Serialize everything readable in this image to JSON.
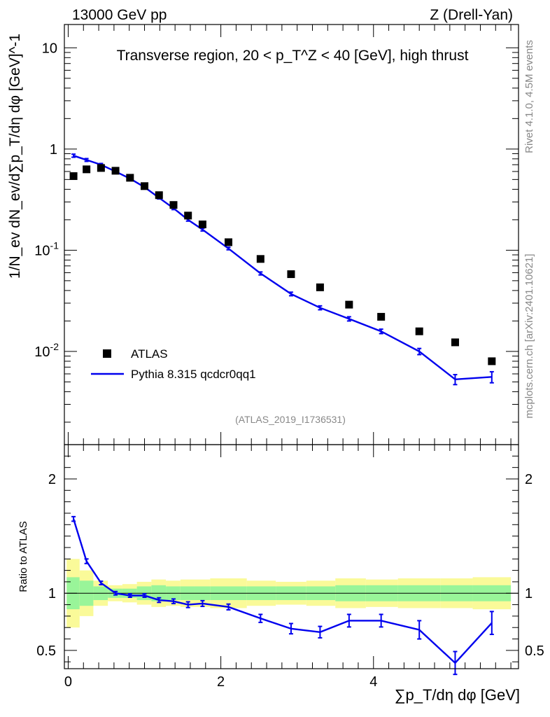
{
  "header": {
    "energy_label": "13000 GeV pp",
    "process_label": "Z (Drell-Yan)"
  },
  "side_labels": {
    "rivet": "Rivet 4.1.0,  4.5M events",
    "mcplots": "mcplots.cern.ch [arXiv:2401.10621]"
  },
  "chart_data": [
    {
      "type": "scatter",
      "panel": "main",
      "title": "Transverse region, 20 < p_T^Z < 40 [GeV], high thrust",
      "ylabel": "1/N_ev dN_ev/d∑p_T/dη dφ [GeV]^-1",
      "yscale": "log",
      "ylim": [
        0.0012,
        17
      ],
      "xlim": [
        -0.05,
        5.9
      ],
      "yticks": [
        {
          "value": 10,
          "label": "10"
        },
        {
          "value": 1,
          "label": "1"
        },
        {
          "value": 0.1,
          "label": "10^-1"
        },
        {
          "value": 0.01,
          "label": "10^-2"
        }
      ],
      "legend_position": "bottom-left",
      "reference_label": "(ATLAS_2019_I1736531)",
      "series": [
        {
          "name": "ATLAS",
          "style": "markers",
          "color": "#000000",
          "x": [
            0.07,
            0.24,
            0.43,
            0.62,
            0.81,
            1.0,
            1.19,
            1.38,
            1.57,
            1.76,
            2.1,
            2.52,
            2.92,
            3.3,
            3.68,
            4.1,
            4.6,
            5.07,
            5.55
          ],
          "y": [
            0.54,
            0.63,
            0.65,
            0.61,
            0.52,
            0.43,
            0.35,
            0.28,
            0.22,
            0.18,
            0.12,
            0.082,
            0.058,
            0.043,
            0.029,
            0.022,
            0.0158,
            0.0123,
            0.008
          ]
        },
        {
          "name": "Pythia 8.315 qcdcr0qq1",
          "style": "line",
          "color": "#0000ee",
          "x": [
            0.07,
            0.24,
            0.43,
            0.62,
            0.81,
            1.0,
            1.19,
            1.38,
            1.57,
            1.76,
            2.1,
            2.52,
            2.92,
            3.3,
            3.68,
            4.1,
            4.6,
            5.07,
            5.55
          ],
          "y": [
            0.86,
            0.78,
            0.7,
            0.6,
            0.51,
            0.42,
            0.33,
            0.26,
            0.2,
            0.16,
            0.104,
            0.059,
            0.037,
            0.027,
            0.021,
            0.0158,
            0.01,
            0.0053,
            0.0056
          ],
          "err": [
            0.03,
            0.025,
            0.02,
            0.015,
            0.012,
            0.01,
            0.009,
            0.008,
            0.006,
            0.005,
            0.003,
            0.002,
            0.0015,
            0.0012,
            0.001,
            0.0008,
            0.0007,
            0.0006,
            0.0007
          ]
        }
      ]
    },
    {
      "type": "line",
      "panel": "ratio",
      "ylabel": "Ratio to ATLAS",
      "xlabel": "∑p_T/dη dφ [GeV]",
      "ylim": [
        0.34,
        2.3
      ],
      "xlim": [
        -0.05,
        5.9
      ],
      "yticks": [
        0.5,
        1,
        2
      ],
      "xticks": [
        0,
        2,
        4
      ],
      "bins": [
        -0.02,
        0.15,
        0.33,
        0.52,
        0.71,
        0.9,
        1.09,
        1.28,
        1.47,
        1.66,
        1.86,
        2.34,
        2.72,
        3.12,
        3.5,
        3.9,
        4.32,
        4.88,
        5.3,
        5.8
      ],
      "band_stat": [
        0.14,
        0.11,
        0.06,
        0.04,
        0.04,
        0.06,
        0.07,
        0.06,
        0.06,
        0.06,
        0.06,
        0.06,
        0.06,
        0.06,
        0.07,
        0.07,
        0.07,
        0.07,
        0.07
      ],
      "band_total": [
        0.3,
        0.2,
        0.11,
        0.07,
        0.08,
        0.1,
        0.12,
        0.11,
        0.12,
        0.12,
        0.13,
        0.11,
        0.1,
        0.11,
        0.13,
        0.12,
        0.13,
        0.13,
        0.14
      ],
      "band_colors": {
        "stat": "#99f599",
        "total": "#fafa99"
      },
      "series": [
        {
          "name": "Pythia 8.315 qcdcr0qq1 / ATLAS",
          "color": "#0000ee",
          "x": [
            0.07,
            0.24,
            0.43,
            0.62,
            0.81,
            1.0,
            1.19,
            1.38,
            1.57,
            1.76,
            2.1,
            2.52,
            2.92,
            3.3,
            3.68,
            4.1,
            4.6,
            5.07,
            5.55
          ],
          "y": [
            1.65,
            1.28,
            1.09,
            1.0,
            0.98,
            0.98,
            0.94,
            0.93,
            0.9,
            0.91,
            0.88,
            0.78,
            0.69,
            0.66,
            0.76,
            0.76,
            0.68,
            0.39,
            0.74
          ],
          "err": [
            0.02,
            0.02,
            0.015,
            0.015,
            0.015,
            0.015,
            0.02,
            0.02,
            0.025,
            0.025,
            0.025,
            0.035,
            0.045,
            0.05,
            0.055,
            0.055,
            0.08,
            0.1,
            0.1
          ]
        }
      ]
    }
  ]
}
